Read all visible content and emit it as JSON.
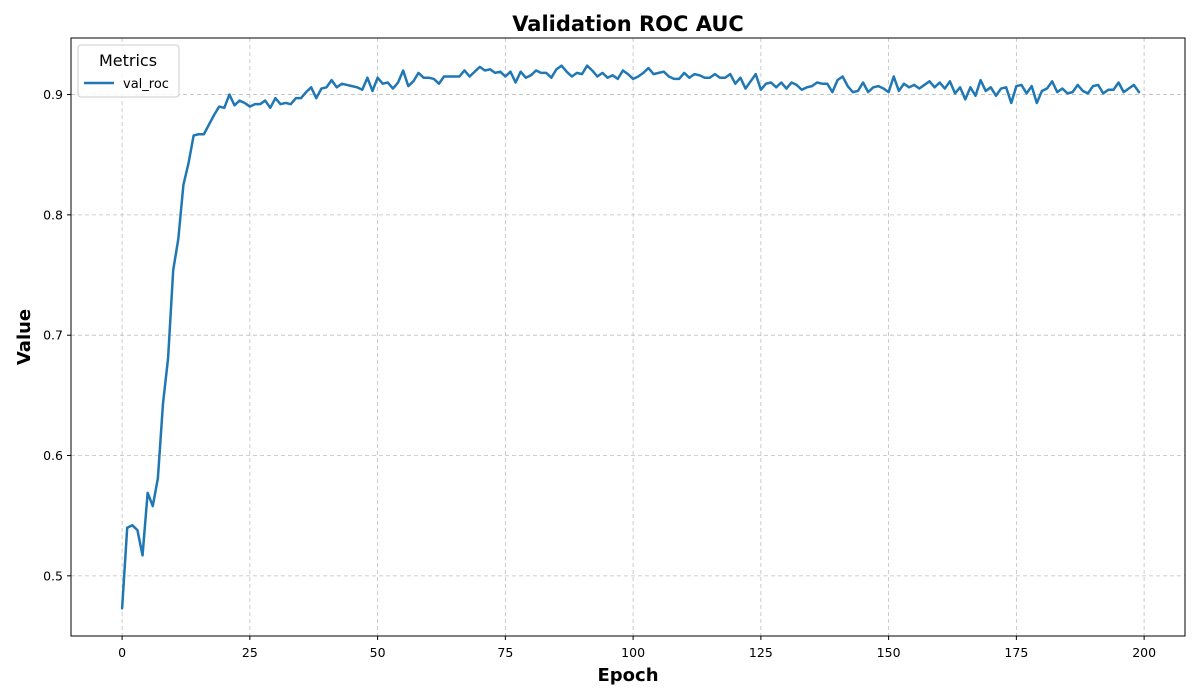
{
  "chart_data": {
    "type": "line",
    "title": "Validation ROC AUC",
    "xlabel": "Epoch",
    "ylabel": "Value",
    "xlim": [
      -10,
      208
    ],
    "ylim": [
      0.45,
      0.947
    ],
    "xticks": [
      0,
      25,
      50,
      75,
      100,
      125,
      150,
      175,
      200
    ],
    "yticks": [
      0.5,
      0.6,
      0.7,
      0.8,
      0.9
    ],
    "grid": true,
    "legend": {
      "title": "Metrics",
      "placement": "top-left"
    },
    "series": [
      {
        "name": "val_roc",
        "color": "#1f77b4",
        "x_start": 0,
        "x_step": 1,
        "values": [
          0.473,
          0.54,
          0.542,
          0.538,
          0.517,
          0.569,
          0.558,
          0.581,
          0.643,
          0.681,
          0.754,
          0.78,
          0.825,
          0.843,
          0.866,
          0.867,
          0.867,
          0.875,
          0.883,
          0.89,
          0.889,
          0.9,
          0.891,
          0.895,
          0.893,
          0.89,
          0.892,
          0.892,
          0.895,
          0.889,
          0.897,
          0.892,
          0.893,
          0.892,
          0.897,
          0.897,
          0.902,
          0.906,
          0.897,
          0.905,
          0.906,
          0.912,
          0.906,
          0.909,
          0.908,
          0.907,
          0.906,
          0.904,
          0.914,
          0.903,
          0.914,
          0.909,
          0.91,
          0.905,
          0.91,
          0.92,
          0.907,
          0.911,
          0.918,
          0.914,
          0.914,
          0.913,
          0.909,
          0.915,
          0.915,
          0.915,
          0.915,
          0.92,
          0.915,
          0.919,
          0.923,
          0.92,
          0.921,
          0.918,
          0.919,
          0.915,
          0.919,
          0.91,
          0.919,
          0.914,
          0.916,
          0.92,
          0.918,
          0.918,
          0.914,
          0.921,
          0.924,
          0.919,
          0.915,
          0.918,
          0.917,
          0.924,
          0.92,
          0.915,
          0.918,
          0.914,
          0.916,
          0.913,
          0.92,
          0.917,
          0.913,
          0.915,
          0.918,
          0.922,
          0.917,
          0.918,
          0.919,
          0.915,
          0.913,
          0.913,
          0.918,
          0.914,
          0.917,
          0.916,
          0.914,
          0.914,
          0.917,
          0.914,
          0.914,
          0.917,
          0.909,
          0.914,
          0.905,
          0.911,
          0.917,
          0.904,
          0.909,
          0.91,
          0.906,
          0.91,
          0.905,
          0.91,
          0.908,
          0.904,
          0.906,
          0.907,
          0.91,
          0.909,
          0.909,
          0.902,
          0.912,
          0.915,
          0.907,
          0.902,
          0.903,
          0.91,
          0.902,
          0.906,
          0.907,
          0.905,
          0.902,
          0.915,
          0.903,
          0.909,
          0.906,
          0.908,
          0.905,
          0.908,
          0.911,
          0.906,
          0.91,
          0.905,
          0.911,
          0.901,
          0.906,
          0.896,
          0.906,
          0.899,
          0.912,
          0.903,
          0.906,
          0.899,
          0.905,
          0.906,
          0.893,
          0.907,
          0.908,
          0.901,
          0.907,
          0.893,
          0.903,
          0.905,
          0.911,
          0.902,
          0.905,
          0.901,
          0.902,
          0.908,
          0.903,
          0.901,
          0.907,
          0.908,
          0.901,
          0.904,
          0.904,
          0.91,
          0.902,
          0.905,
          0.908,
          0.902
        ]
      }
    ]
  }
}
